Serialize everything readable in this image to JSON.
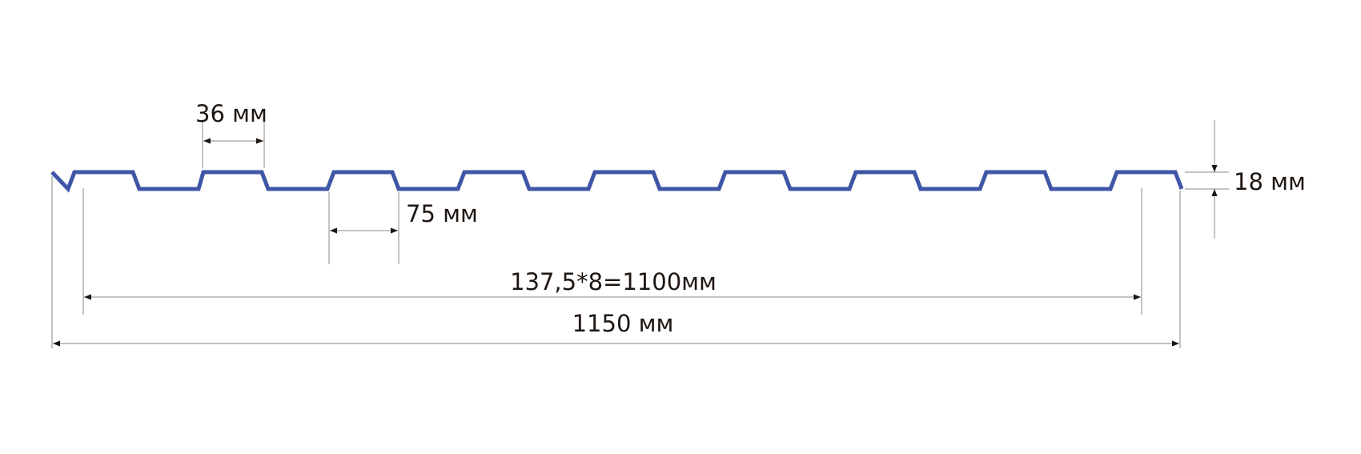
{
  "diagram": {
    "profile_color": "#3f56a6",
    "dimension_color": "#8a8a8a",
    "text_color": "#1e1611",
    "ridge_count": 9,
    "labels": {
      "ridge_top_width": "36 мм",
      "trough_width": "75 мм",
      "useful_width": "137,5*8=1100мм",
      "total_width": "1150 мм",
      "height": "18 мм"
    }
  }
}
